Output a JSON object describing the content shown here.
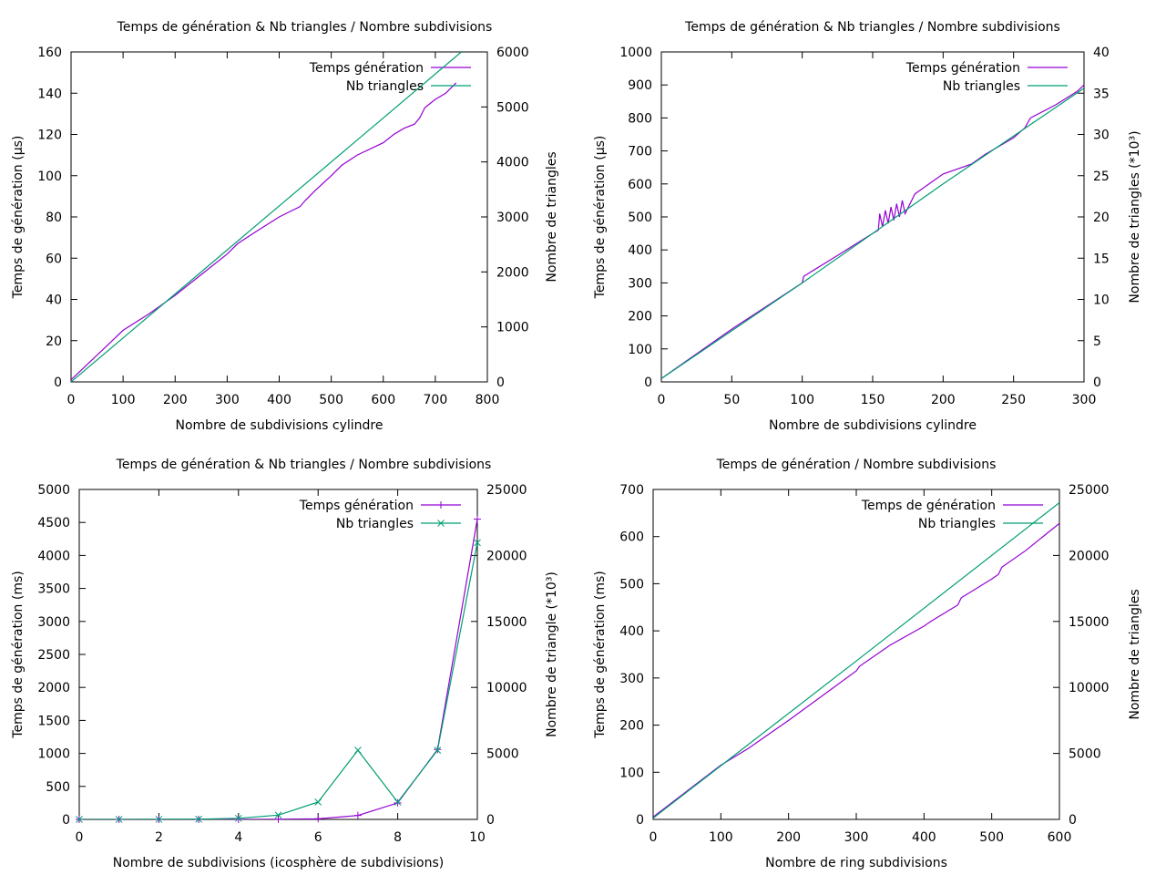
{
  "colors": {
    "series1": "#9400d3",
    "series2": "#009e73",
    "axis": "#000000"
  },
  "chart_data": [
    {
      "type": "line",
      "title": "Temps de génération & Nb triangles / Nombre subdivisions",
      "xlabel": "Nombre de subdivisions cylindre",
      "ylabel": "Temps de génération (µs)",
      "y2label": "Nombre de triangles",
      "xlim": [
        0,
        800
      ],
      "ylim": [
        0,
        160
      ],
      "y2lim": [
        0,
        6000
      ],
      "xticks": [
        "0",
        "100",
        "200",
        "300",
        "400",
        "500",
        "600",
        "700",
        "800"
      ],
      "yticks": [
        "0",
        "20",
        "40",
        "60",
        "80",
        "100",
        "120",
        "140",
        "160"
      ],
      "y2ticks": [
        "0",
        "1000",
        "2000",
        "3000",
        "4000",
        "5000",
        "6000"
      ],
      "legend": "top-right",
      "grid": false,
      "series": [
        {
          "name": "Temps génération",
          "axis": "y",
          "marker": "none",
          "x": [
            0,
            50,
            100,
            150,
            200,
            250,
            300,
            320,
            350,
            400,
            440,
            450,
            470,
            500,
            520,
            550,
            600,
            620,
            640,
            660,
            670,
            680,
            700,
            720,
            740
          ],
          "y": [
            1,
            13,
            25,
            33,
            42,
            52,
            62,
            67,
            72,
            80,
            85,
            88,
            93,
            100,
            105,
            110,
            116,
            120,
            123,
            125,
            128,
            133,
            137,
            140,
            145
          ]
        },
        {
          "name": "Nb triangles",
          "axis": "y2",
          "marker": "none",
          "x": [
            0,
            200,
            400,
            600,
            750
          ],
          "y": [
            0,
            1600,
            3200,
            4800,
            6000
          ]
        }
      ]
    },
    {
      "type": "line",
      "title": "Temps de génération & Nb triangles / Nombre subdivisions",
      "xlabel": "Nombre de subdivisions cylindre",
      "ylabel": "Temps de génération (µs)",
      "y2label": "Nombre de triangles (*10³)",
      "xlim": [
        0,
        300
      ],
      "ylim": [
        0,
        1000
      ],
      "y2lim": [
        0,
        40
      ],
      "xticks": [
        "0",
        "50",
        "100",
        "150",
        "200",
        "250",
        "300"
      ],
      "yticks": [
        "0",
        "100",
        "200",
        "300",
        "400",
        "500",
        "600",
        "700",
        "800",
        "900",
        "1000"
      ],
      "y2ticks": [
        "0",
        "5",
        "10",
        "15",
        "20",
        "25",
        "30",
        "35",
        "40"
      ],
      "legend": "top-right",
      "grid": false,
      "series": [
        {
          "name": "Temps génération",
          "axis": "y",
          "marker": "none",
          "x": [
            0,
            50,
            100,
            101,
            120,
            150,
            154,
            155,
            157,
            159,
            161,
            163,
            165,
            167,
            169,
            171,
            173,
            180,
            200,
            220,
            230,
            250,
            258,
            262,
            280,
            295,
            300
          ],
          "y": [
            10,
            160,
            300,
            320,
            370,
            450,
            460,
            510,
            470,
            520,
            480,
            530,
            490,
            540,
            500,
            550,
            510,
            570,
            630,
            660,
            690,
            740,
            770,
            800,
            840,
            880,
            900
          ]
        },
        {
          "name": "Nb triangles",
          "axis": "y2",
          "marker": "none",
          "x": [
            0,
            100,
            200,
            300
          ],
          "y": [
            0.4,
            12,
            24,
            35.6
          ]
        }
      ]
    },
    {
      "type": "line",
      "title": "Temps de génération & Nb triangles / Nombre subdivisions",
      "xlabel": "Nombre de subdivisions (icosphère de subdivisions)",
      "ylabel": "Temps de génération (ms)",
      "y2label": "Nombre de triangle (*10³)",
      "xlim": [
        0,
        10
      ],
      "ylim": [
        0,
        5000
      ],
      "y2lim": [
        0,
        25000
      ],
      "xticks": [
        "0",
        "2",
        "4",
        "6",
        "8",
        "10"
      ],
      "yticks": [
        "0",
        "500",
        "1000",
        "1500",
        "2000",
        "2500",
        "3000",
        "3500",
        "4000",
        "4500",
        "5000"
      ],
      "y2ticks": [
        "0",
        "5000",
        "10000",
        "15000",
        "20000",
        "25000"
      ],
      "legend": "top-right",
      "grid": false,
      "series": [
        {
          "name": "Temps génération",
          "axis": "y",
          "marker": "plus",
          "x": [
            0,
            1,
            2,
            3,
            4,
            5,
            6,
            7,
            8,
            9,
            10
          ],
          "y": [
            0,
            0,
            0,
            0,
            0,
            2,
            10,
            60,
            250,
            1060,
            4550
          ]
        },
        {
          "name": "Nb triangles",
          "axis": "y2",
          "marker": "cross",
          "x": [
            0,
            1,
            2,
            3,
            4,
            5,
            6,
            7,
            8,
            9,
            10
          ],
          "y": [
            0,
            1,
            5,
            20,
            81,
            327,
            1310,
            5240,
            1310,
            5240,
            20970
          ],
          "y_note_free": true
        }
      ]
    },
    {
      "type": "line",
      "title": "Temps de génération / Nombre subdivisions",
      "xlabel": "Nombre de ring subdivisions",
      "ylabel": "Temps de génération (ms)",
      "y2label": "Nombre de triangles",
      "xlim": [
        0,
        600
      ],
      "ylim": [
        0,
        700
      ],
      "y2lim": [
        0,
        25000
      ],
      "xticks": [
        "0",
        "100",
        "200",
        "300",
        "400",
        "500",
        "600"
      ],
      "yticks": [
        "0",
        "100",
        "200",
        "300",
        "400",
        "500",
        "600",
        "700"
      ],
      "y2ticks": [
        "0",
        "5000",
        "10000",
        "15000",
        "20000",
        "25000"
      ],
      "legend": "top-right",
      "grid": false,
      "series": [
        {
          "name": "Temps de génération",
          "axis": "y",
          "marker": "none",
          "x": [
            0,
            100,
            140,
            200,
            300,
            305,
            350,
            400,
            410,
            450,
            455,
            500,
            510,
            515,
            550,
            600
          ],
          "y": [
            5,
            115,
            150,
            210,
            315,
            325,
            370,
            410,
            420,
            455,
            470,
            510,
            520,
            535,
            570,
            628
          ]
        },
        {
          "name": "Nb triangles",
          "axis": "y2",
          "marker": "none",
          "x": [
            0,
            300,
            600
          ],
          "y": [
            100,
            12000,
            24000
          ]
        }
      ]
    }
  ]
}
